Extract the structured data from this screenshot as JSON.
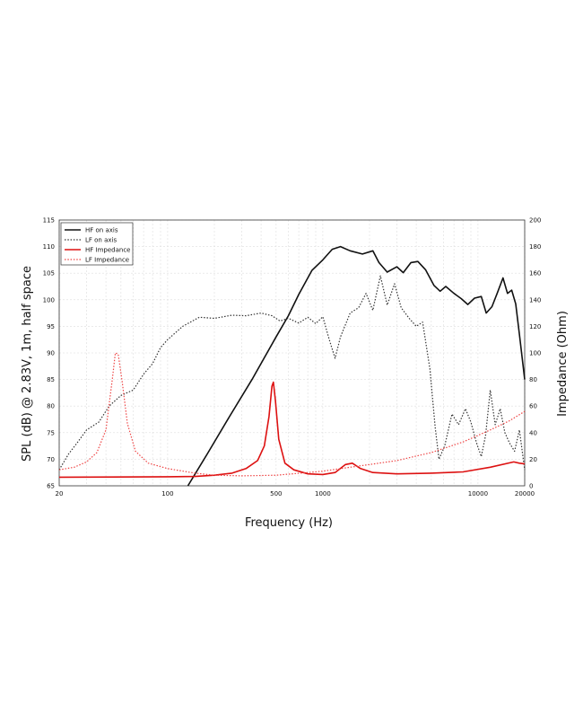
{
  "chart_data": {
    "type": "line",
    "xlabel": "Frequency (Hz)",
    "ylabel_left": "SPL (dB) @ 2.83V, 1m, half space",
    "ylabel_right": "Impedance (Ohm)",
    "x_scale": "log",
    "xlim": [
      20,
      20000
    ],
    "ylim_left": [
      65,
      115
    ],
    "ylim_right": [
      0,
      200
    ],
    "x_ticks": [
      20,
      100,
      500,
      1000,
      10000,
      20000
    ],
    "x_tick_labels": [
      "20",
      "100",
      "500",
      "1000",
      "10000",
      "20000"
    ],
    "y_left_ticks": [
      65,
      70,
      75,
      80,
      85,
      90,
      95,
      100,
      105,
      110,
      115
    ],
    "y_left_tick_labels": [
      "65",
      "70",
      "75",
      "80",
      "85",
      "90",
      "95",
      "100",
      "105",
      "110",
      "115"
    ],
    "y_right_ticks": [
      0,
      20,
      40,
      60,
      80,
      100,
      120,
      140,
      160,
      180,
      200
    ],
    "y_right_tick_labels": [
      "0",
      "20",
      "40",
      "60",
      "80",
      "100",
      "120",
      "140",
      "160",
      "180",
      "200"
    ],
    "grid": true,
    "legend_position": "top-left",
    "series": [
      {
        "name": "HF on axis",
        "axis": "left",
        "color": "#111111",
        "style": "solid",
        "points": [
          [
            135,
            65
          ],
          [
            180,
            71
          ],
          [
            250,
            78
          ],
          [
            350,
            85
          ],
          [
            500,
            93
          ],
          [
            600,
            97
          ],
          [
            700,
            101
          ],
          [
            850,
            105.5
          ],
          [
            1000,
            107.5
          ],
          [
            1150,
            109.5
          ],
          [
            1300,
            110
          ],
          [
            1500,
            109.2
          ],
          [
            1800,
            108.6
          ],
          [
            2100,
            109.2
          ],
          [
            2300,
            107
          ],
          [
            2600,
            105.2
          ],
          [
            3000,
            106.2
          ],
          [
            3300,
            105.1
          ],
          [
            3700,
            107
          ],
          [
            4100,
            107.2
          ],
          [
            4600,
            105.6
          ],
          [
            5200,
            102.7
          ],
          [
            5700,
            101.6
          ],
          [
            6200,
            102.5
          ],
          [
            7000,
            101.2
          ],
          [
            7800,
            100.2
          ],
          [
            8600,
            99.1
          ],
          [
            9500,
            100.3
          ],
          [
            10500,
            100.6
          ],
          [
            11300,
            97.5
          ],
          [
            12300,
            98.7
          ],
          [
            13300,
            101.2
          ],
          [
            14500,
            104.1
          ],
          [
            15500,
            101.2
          ],
          [
            16500,
            101.8
          ],
          [
            17500,
            99.2
          ],
          [
            18500,
            93.5
          ],
          [
            20000,
            85
          ]
        ]
      },
      {
        "name": "LF on axis",
        "axis": "left",
        "color": "#333333",
        "style": "dotted",
        "points": [
          [
            20,
            68
          ],
          [
            23,
            71
          ],
          [
            26,
            73
          ],
          [
            30,
            75.5
          ],
          [
            36,
            77
          ],
          [
            42,
            80
          ],
          [
            50,
            82
          ],
          [
            60,
            83
          ],
          [
            70,
            86
          ],
          [
            80,
            88
          ],
          [
            90,
            91
          ],
          [
            100,
            92.5
          ],
          [
            125,
            95
          ],
          [
            160,
            96.7
          ],
          [
            200,
            96.5
          ],
          [
            260,
            97.1
          ],
          [
            320,
            97
          ],
          [
            400,
            97.5
          ],
          [
            470,
            97
          ],
          [
            530,
            96
          ],
          [
            600,
            96.5
          ],
          [
            700,
            95.6
          ],
          [
            800,
            96.7
          ],
          [
            900,
            95.5
          ],
          [
            1000,
            96.8
          ],
          [
            1100,
            92.5
          ],
          [
            1200,
            89
          ],
          [
            1300,
            93
          ],
          [
            1500,
            97.5
          ],
          [
            1700,
            98.5
          ],
          [
            1900,
            101.2
          ],
          [
            2100,
            98
          ],
          [
            2350,
            104.5
          ],
          [
            2600,
            99
          ],
          [
            2900,
            103
          ],
          [
            3200,
            98.5
          ],
          [
            3600,
            96.5
          ],
          [
            4000,
            95
          ],
          [
            4400,
            95.8
          ],
          [
            4900,
            87
          ],
          [
            5300,
            76
          ],
          [
            5600,
            70
          ],
          [
            6100,
            72.5
          ],
          [
            6800,
            78.5
          ],
          [
            7500,
            76.5
          ],
          [
            8300,
            79.5
          ],
          [
            9000,
            77
          ],
          [
            9800,
            73
          ],
          [
            10500,
            70.5
          ],
          [
            11200,
            74.5
          ],
          [
            12000,
            83
          ],
          [
            12900,
            76.5
          ],
          [
            13900,
            79.5
          ],
          [
            14900,
            75
          ],
          [
            16000,
            73
          ],
          [
            17200,
            71.5
          ],
          [
            18500,
            75.5
          ],
          [
            20000,
            68
          ]
        ]
      },
      {
        "name": "HF Impedance",
        "axis": "right",
        "color": "#dd1111",
        "style": "solid",
        "points": [
          [
            20,
            6.5
          ],
          [
            100,
            6.8
          ],
          [
            150,
            7
          ],
          [
            200,
            8
          ],
          [
            260,
            9.5
          ],
          [
            320,
            13
          ],
          [
            380,
            19
          ],
          [
            420,
            30
          ],
          [
            450,
            52
          ],
          [
            470,
            75
          ],
          [
            480,
            78
          ],
          [
            495,
            64
          ],
          [
            520,
            35
          ],
          [
            570,
            17
          ],
          [
            650,
            12
          ],
          [
            800,
            9
          ],
          [
            1000,
            8.5
          ],
          [
            1200,
            10
          ],
          [
            1400,
            16
          ],
          [
            1550,
            17
          ],
          [
            1750,
            13
          ],
          [
            2100,
            10
          ],
          [
            3000,
            9
          ],
          [
            5000,
            9.5
          ],
          [
            8000,
            10.5
          ],
          [
            12000,
            14
          ],
          [
            17000,
            18
          ],
          [
            18500,
            17
          ],
          [
            20000,
            16.5
          ]
        ]
      },
      {
        "name": "LF Impedance",
        "axis": "right",
        "color": "#ee4444",
        "style": "dotted",
        "points": [
          [
            20,
            12
          ],
          [
            25,
            14
          ],
          [
            30,
            18
          ],
          [
            35,
            25
          ],
          [
            40,
            42
          ],
          [
            44,
            80
          ],
          [
            46,
            100
          ],
          [
            48,
            99
          ],
          [
            51,
            78
          ],
          [
            55,
            47
          ],
          [
            62,
            26
          ],
          [
            75,
            17
          ],
          [
            100,
            13
          ],
          [
            150,
            9.5
          ],
          [
            200,
            8
          ],
          [
            300,
            7.5
          ],
          [
            500,
            8
          ],
          [
            800,
            10
          ],
          [
            1000,
            11
          ],
          [
            1500,
            14
          ],
          [
            2000,
            16
          ],
          [
            3000,
            19
          ],
          [
            5000,
            25
          ],
          [
            8000,
            33
          ],
          [
            12000,
            42
          ],
          [
            16000,
            49
          ],
          [
            20000,
            56
          ]
        ]
      }
    ]
  }
}
